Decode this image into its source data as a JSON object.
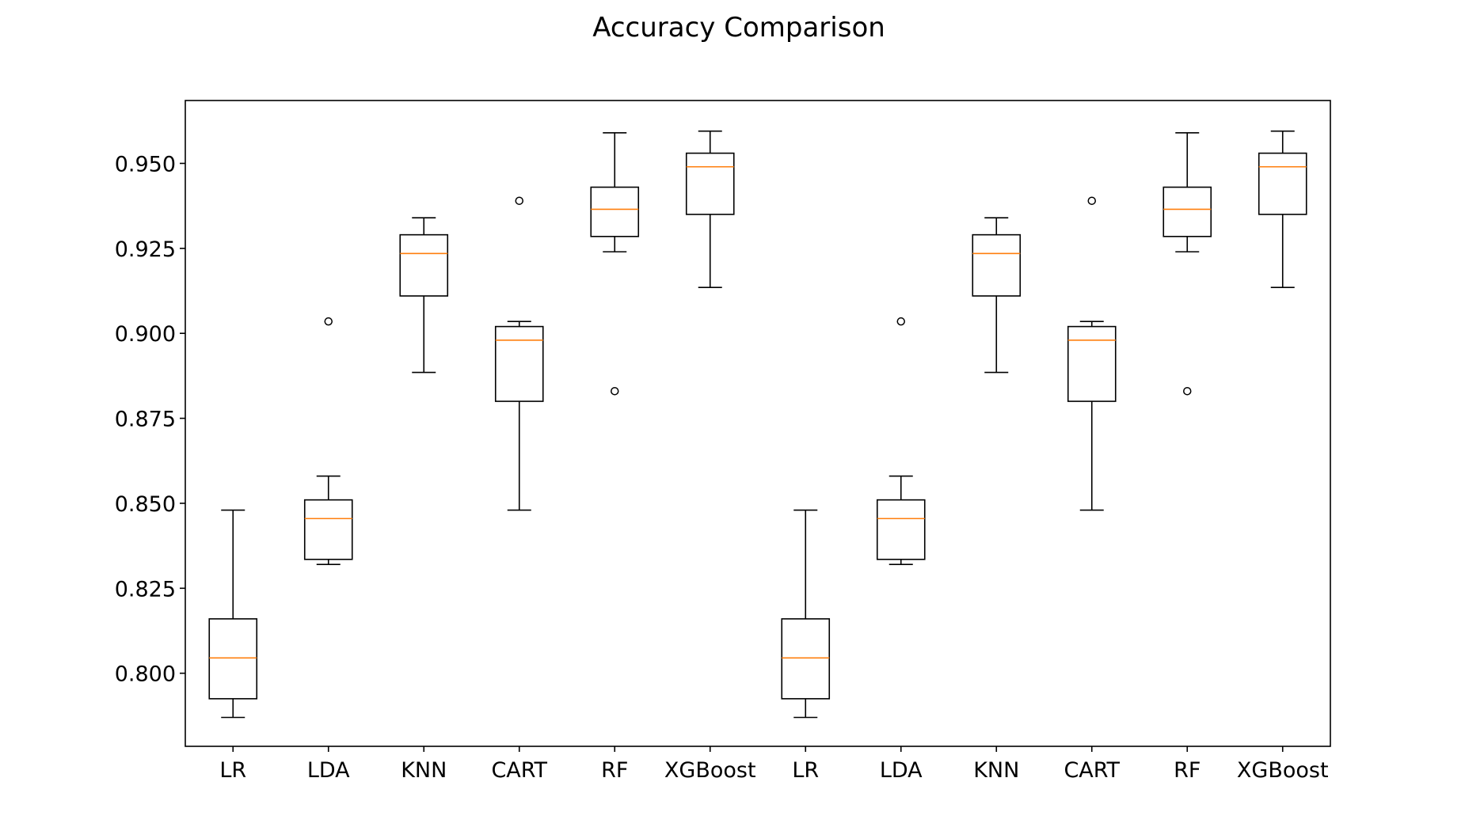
{
  "chart_data": {
    "type": "box",
    "title": "Accuracy Comparison",
    "xlabel": "",
    "ylabel": "",
    "ylim": [
      0.7785,
      0.9685
    ],
    "yticks": [
      0.8,
      0.825,
      0.85,
      0.875,
      0.9,
      0.925,
      0.95
    ],
    "ytick_labels": [
      "0.800",
      "0.825",
      "0.850",
      "0.875",
      "0.900",
      "0.925",
      "0.950"
    ],
    "grid": false,
    "colors": {
      "box": "#000000",
      "median": "#ff7f0e"
    },
    "categories": [
      "LR",
      "LDA",
      "KNN",
      "CART",
      "RF",
      "XGBoost",
      "LR",
      "LDA",
      "KNN",
      "CART",
      "RF",
      "XGBoost"
    ],
    "boxes": [
      {
        "label": "LR",
        "whislo": 0.787,
        "q1": 0.7925,
        "med": 0.8045,
        "q3": 0.816,
        "whishi": 0.848,
        "fliers": []
      },
      {
        "label": "LDA",
        "whislo": 0.832,
        "q1": 0.8335,
        "med": 0.8455,
        "q3": 0.851,
        "whishi": 0.858,
        "fliers": [
          0.9035
        ]
      },
      {
        "label": "KNN",
        "whislo": 0.8885,
        "q1": 0.911,
        "med": 0.9235,
        "q3": 0.929,
        "whishi": 0.934,
        "fliers": []
      },
      {
        "label": "CART",
        "whislo": 0.848,
        "q1": 0.88,
        "med": 0.898,
        "q3": 0.902,
        "whishi": 0.9035,
        "fliers": [
          0.939
        ]
      },
      {
        "label": "RF",
        "whislo": 0.924,
        "q1": 0.9285,
        "med": 0.9365,
        "q3": 0.943,
        "whishi": 0.959,
        "fliers": [
          0.883
        ]
      },
      {
        "label": "XGBoost",
        "whislo": 0.9135,
        "q1": 0.935,
        "med": 0.949,
        "q3": 0.953,
        "whishi": 0.9595,
        "fliers": []
      },
      {
        "label": "LR",
        "whislo": 0.787,
        "q1": 0.7925,
        "med": 0.8045,
        "q3": 0.816,
        "whishi": 0.848,
        "fliers": []
      },
      {
        "label": "LDA",
        "whislo": 0.832,
        "q1": 0.8335,
        "med": 0.8455,
        "q3": 0.851,
        "whishi": 0.858,
        "fliers": [
          0.9035
        ]
      },
      {
        "label": "KNN",
        "whislo": 0.8885,
        "q1": 0.911,
        "med": 0.9235,
        "q3": 0.929,
        "whishi": 0.934,
        "fliers": []
      },
      {
        "label": "CART",
        "whislo": 0.848,
        "q1": 0.88,
        "med": 0.898,
        "q3": 0.902,
        "whishi": 0.9035,
        "fliers": [
          0.939
        ]
      },
      {
        "label": "RF",
        "whislo": 0.924,
        "q1": 0.9285,
        "med": 0.9365,
        "q3": 0.943,
        "whishi": 0.959,
        "fliers": [
          0.883
        ]
      },
      {
        "label": "XGBoost",
        "whislo": 0.9135,
        "q1": 0.935,
        "med": 0.949,
        "q3": 0.953,
        "whishi": 0.9595,
        "fliers": []
      }
    ]
  }
}
